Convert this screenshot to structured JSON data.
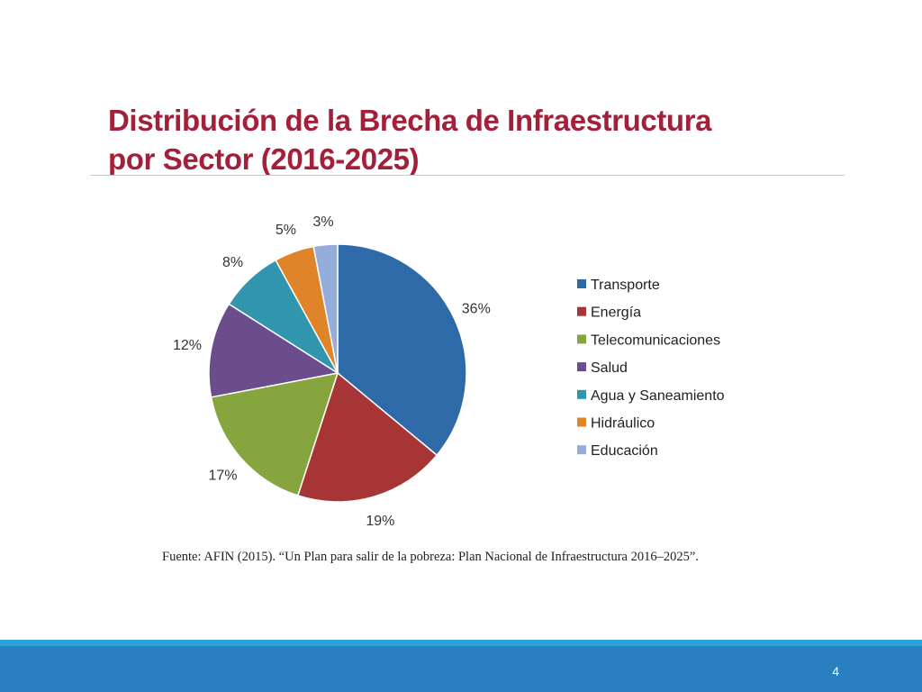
{
  "slide": {
    "title_line1": "Distribución de la Brecha de Infraestructura",
    "title_line2": "por Sector (2016-2025)",
    "source": "Fuente: AFIN (2015). “Un Plan para salir de la pobreza: Plan Nacional de Infraestructura 2016–2025”.",
    "page_number": "4"
  },
  "colors": {
    "title": "#a3203a",
    "footer_top": "#2aa3d9",
    "footer_bar": "#2a7fc0"
  },
  "chart_data": {
    "type": "pie",
    "title": "",
    "legend_position": "right",
    "categories": [
      "Transporte",
      "Energía",
      "Telecomunicaciones",
      "Salud",
      "Agua y Saneamiento",
      "Hidráulico",
      "Educación"
    ],
    "values": [
      36,
      19,
      17,
      12,
      8,
      5,
      3
    ],
    "labels": [
      "36%",
      "19%",
      "17%",
      "12%",
      "8%",
      "5%",
      "3%"
    ],
    "colors": [
      "#2e6aa8",
      "#a83535",
      "#86a53e",
      "#6b4d8e",
      "#3195ae",
      "#df8428",
      "#94addb"
    ]
  }
}
